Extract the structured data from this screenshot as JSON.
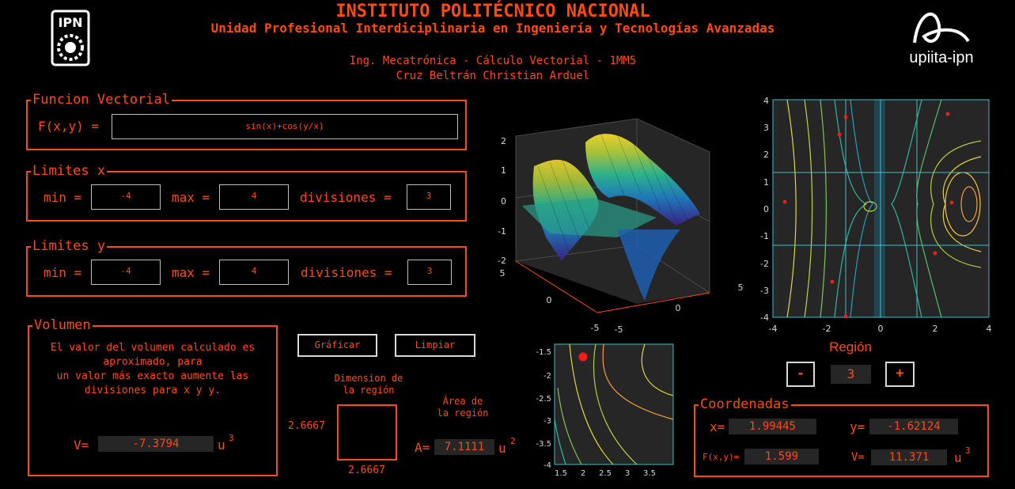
{
  "header": {
    "title": "INSTITUTO POLITÉCNICO NACIONAL",
    "subtitle": "Unidad Profesional Interdiciplinaria en Ingeniería y Tecnologías Avanzadas",
    "course": "Ing. Mecatrónica - Cálculo Vectorial - 1MM5",
    "author": "Cruz Beltrán Christian Arduel",
    "right_logo_text": "upiita-ipn"
  },
  "function_panel": {
    "title": "Funcion Vectorial",
    "label": "F(x,y) =",
    "value": "sin(x)+cos(y/x)"
  },
  "limits_x": {
    "title": "Limites x",
    "min_label": "min =",
    "min": "-4",
    "max_label": "max =",
    "max": "4",
    "div_label": "divisiones =",
    "div": "3"
  },
  "limits_y": {
    "title": "Limites y",
    "min_label": "min =",
    "min": "-4",
    "max_label": "max =",
    "max": "4",
    "div_label": "divisiones =",
    "div": "3"
  },
  "volume_panel": {
    "title": "Volumen",
    "line1": "El valor del volumen calculado es",
    "line2": "aproximado, para",
    "line3": "un valor más exacto aumente las",
    "line4": "divisiones para x y y.",
    "v_label": "V=",
    "v_value": "-7.3794",
    "unit": "u",
    "unit_exp": "3"
  },
  "buttons": {
    "plot": "Gráficar",
    "clear": "Limpiar"
  },
  "region_dim": {
    "title_line1": "Dimension de",
    "title_line2": "la región",
    "height": "2.6667",
    "width": "2.6667"
  },
  "area": {
    "title_line1": "Área de",
    "title_line2": "la región",
    "label": "A=",
    "value": "7.1111",
    "unit": "u",
    "unit_exp": "2"
  },
  "region_selector": {
    "title": "Región",
    "minus": "-",
    "value": "3",
    "plus": "+"
  },
  "coords": {
    "title": "Coordenadas",
    "x_label": "x=",
    "x": "1.99445",
    "y_label": "y=",
    "y": "-1.62124",
    "f_label": "F(x,y)=",
    "f": "1.599",
    "v_label": "V=",
    "v": "11.371",
    "unit": "u",
    "unit_exp": "3"
  },
  "surface_plot": {
    "z_ticks": [
      "2",
      "1",
      "0",
      "-1",
      "-2"
    ],
    "y_ticks": [
      "5",
      "0",
      "-5"
    ],
    "x_ticks": [
      "5",
      "0",
      "-5"
    ]
  },
  "contour_plot": {
    "y_ticks": [
      "4",
      "3",
      "2",
      "1",
      "0",
      "-1",
      "-2",
      "-3",
      "-4"
    ],
    "x_ticks": [
      "-4",
      "-2",
      "0",
      "2",
      "4"
    ]
  },
  "zoom_plot": {
    "y_ticks": [
      "-1.5",
      "-2",
      "-2.5",
      "-3",
      "-3.5",
      "-4"
    ],
    "x_ticks": [
      "1.5",
      "2",
      "2.5",
      "3",
      "3.5"
    ]
  },
  "colors": {
    "accent": "#ff4a12",
    "background": "#000000",
    "axes_bg": "#262626"
  }
}
